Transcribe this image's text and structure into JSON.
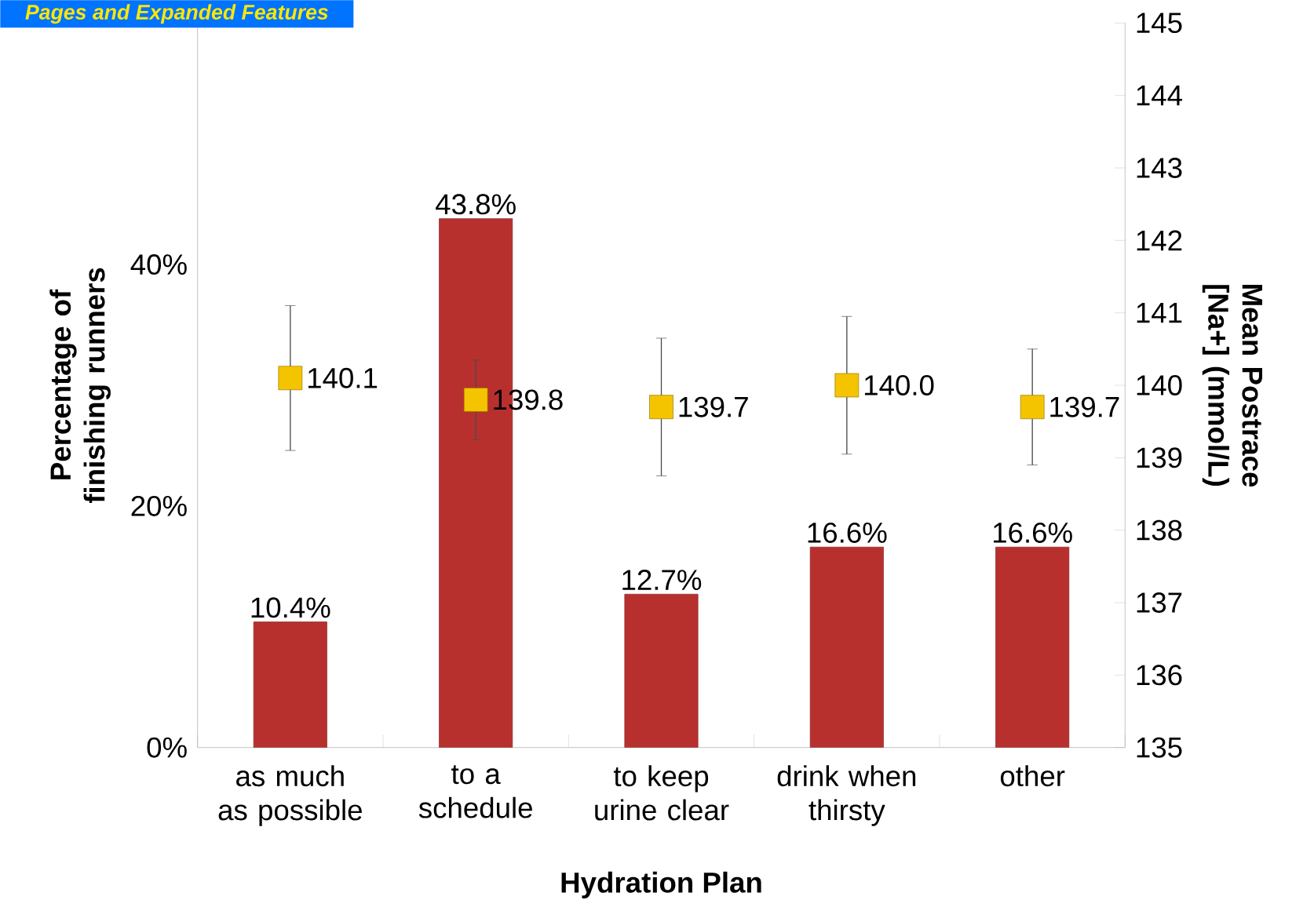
{
  "chart_data": {
    "type": "bar",
    "categories": [
      "as much as possible",
      "to a schedule",
      "to keep urine clear",
      "drink when thirsty",
      "other"
    ],
    "series": [
      {
        "color": "#b8302e",
        "values": [
          10.4,
          43.8,
          12.7,
          16.6,
          16.6
        ],
        "value_labels": [
          "10.4%",
          "43.8%",
          "12.7%",
          "16.6%",
          "16.6%"
        ]
      },
      {
        "type": "scatter",
        "axis": "y2",
        "marker": "square",
        "color": "#f5c400",
        "values": [
          140.1,
          139.8,
          139.7,
          140.0,
          139.7
        ],
        "errors": [
          1.0,
          0.55,
          0.95,
          0.95,
          0.8
        ],
        "value_labels": [
          "140.1",
          "139.8",
          "139.7",
          "140.0",
          "139.7"
        ]
      }
    ],
    "ylim": [
      0,
      60
    ],
    "yticks": [
      {
        "value": 0,
        "label": "0%"
      },
      {
        "value": 20,
        "label": "20%"
      },
      {
        "value": 40,
        "label": "40%"
      },
      {
        "value": 60,
        "label": null
      }
    ],
    "y2lim": [
      135,
      145
    ],
    "y2ticks": [
      135,
      136,
      137,
      138,
      139,
      140,
      141,
      142,
      143,
      144,
      145
    ],
    "xlabel": "Hydration Plan",
    "ylabel": "Percentage of finishing runners",
    "y2label": "Mean Postrace [Na+] (mmol/L)",
    "annotations": [
      "Pages and Expanded Features"
    ]
  }
}
